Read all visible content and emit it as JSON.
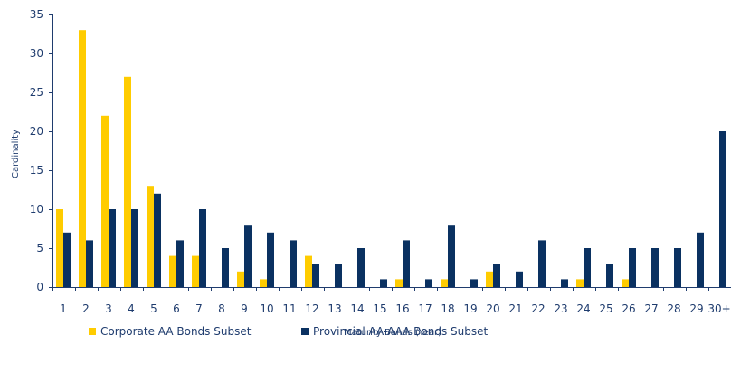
{
  "chart_data": {
    "type": "bar",
    "title": "",
    "xlabel": "Maturity Bands (Year)",
    "ylabel": "Cardinality",
    "ylim": [
      0,
      35
    ],
    "yticks": [
      0,
      5,
      10,
      15,
      20,
      25,
      30,
      35
    ],
    "grid": false,
    "legend_position": "bottom-left",
    "categories": [
      "1",
      "2",
      "3",
      "4",
      "5",
      "6",
      "7",
      "8",
      "9",
      "10",
      "11",
      "12",
      "13",
      "14",
      "15",
      "16",
      "17",
      "18",
      "19",
      "20",
      "21",
      "22",
      "23",
      "24",
      "25",
      "26",
      "27",
      "28",
      "29",
      "30+"
    ],
    "series": [
      {
        "name": "Corporate AA Bonds Subset",
        "color": "#FFCC00",
        "values": [
          10,
          33,
          22,
          27,
          13,
          4,
          4,
          0,
          2,
          1,
          0,
          4,
          0,
          0,
          0,
          1,
          0,
          1,
          0,
          2,
          0,
          0,
          0,
          1,
          0,
          1,
          0,
          0,
          0,
          0
        ]
      },
      {
        "name": "Provincial AA-AAA Bonds Subset",
        "color": "#0A3161",
        "values": [
          7,
          6,
          10,
          10,
          12,
          6,
          10,
          5,
          8,
          7,
          6,
          3,
          3,
          5,
          1,
          6,
          1,
          8,
          1,
          3,
          2,
          6,
          1,
          5,
          3,
          5,
          5,
          5,
          7,
          20
        ]
      }
    ]
  }
}
